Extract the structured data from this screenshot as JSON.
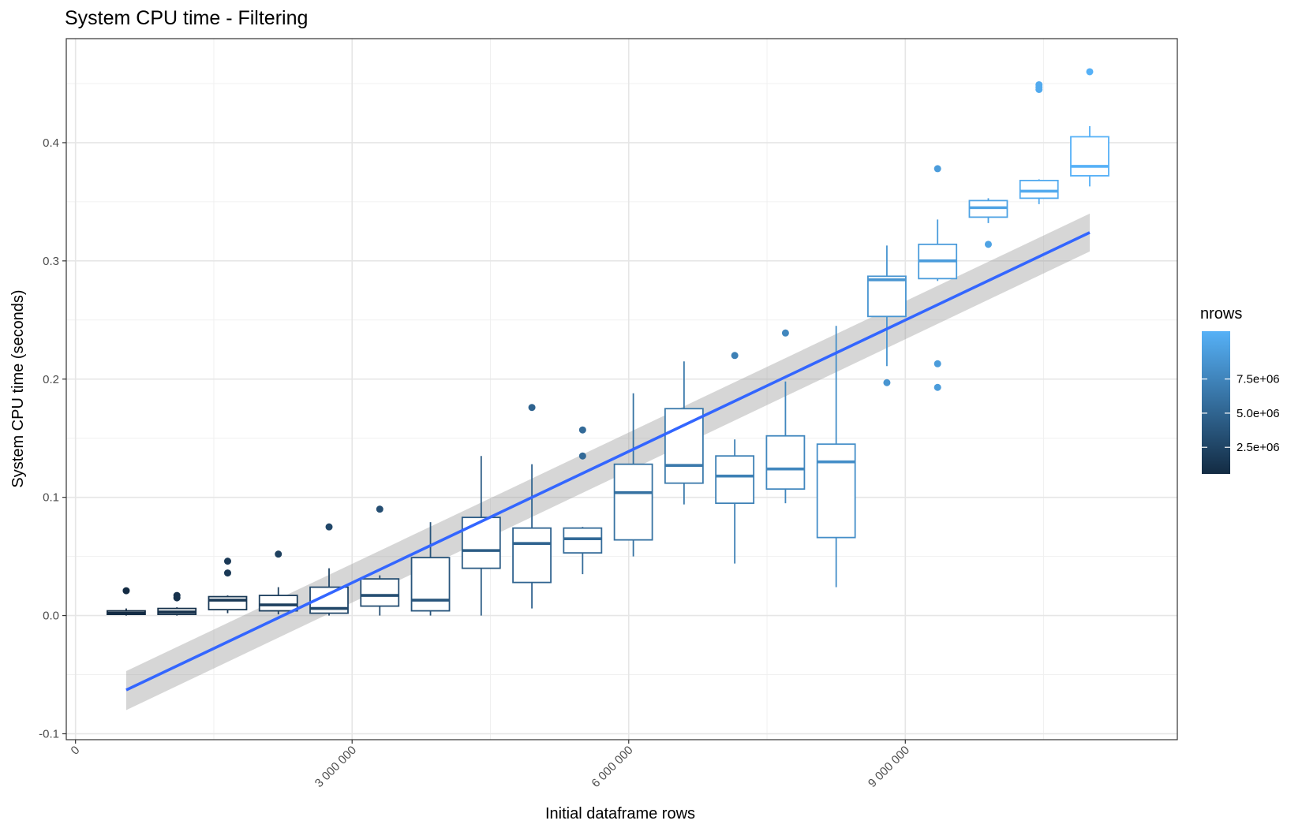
{
  "chart_data": {
    "type": "box",
    "title": "System CPU time - Filtering",
    "xlabel": "Initial dataframe rows",
    "ylabel": "System CPU time (seconds)",
    "xlim": [
      -100000,
      11950000
    ],
    "ylim": [
      -0.105,
      0.488
    ],
    "x_ticks": [
      {
        "value": 0,
        "label": "0"
      },
      {
        "value": 3000000,
        "label": "3 000 000"
      },
      {
        "value": 6000000,
        "label": "6 000 000"
      },
      {
        "value": 9000000,
        "label": "9 000 000"
      }
    ],
    "y_ticks": [
      {
        "value": -0.1,
        "label": "-0.1"
      },
      {
        "value": 0.0,
        "label": "0.0"
      },
      {
        "value": 0.1,
        "label": "0.1"
      },
      {
        "value": 0.2,
        "label": "0.2"
      },
      {
        "value": 0.3,
        "label": "0.3"
      },
      {
        "value": 0.4,
        "label": "0.4"
      }
    ],
    "grid": true,
    "legend": {
      "title": "nrows",
      "position": "right",
      "type": "colorbar",
      "color_low": "#132b43",
      "color_high": "#56b1f7",
      "range": [
        550000,
        11000000
      ],
      "ticks": [
        {
          "value": 2500000,
          "label": "2.5e+06"
        },
        {
          "value": 5000000,
          "label": "5.0e+06"
        },
        {
          "value": 7500000,
          "label": "7.5e+06"
        }
      ]
    },
    "boxes": [
      {
        "x": 550000,
        "whisker_low": 0.0,
        "q1": 0.001,
        "median": 0.002,
        "q3": 0.004,
        "whisker_high": 0.006,
        "outliers": [
          0.021
        ]
      },
      {
        "x": 1100000,
        "whisker_low": 0.0,
        "q1": 0.001,
        "median": 0.003,
        "q3": 0.006,
        "whisker_high": 0.007,
        "outliers": [
          0.015,
          0.017
        ]
      },
      {
        "x": 1650000,
        "whisker_low": 0.002,
        "q1": 0.005,
        "median": 0.013,
        "q3": 0.016,
        "whisker_high": 0.017,
        "outliers": [
          0.036,
          0.046
        ]
      },
      {
        "x": 2200000,
        "whisker_low": 0.001,
        "q1": 0.004,
        "median": 0.009,
        "q3": 0.017,
        "whisker_high": 0.024,
        "outliers": [
          0.052
        ]
      },
      {
        "x": 2750000,
        "whisker_low": 0.0,
        "q1": 0.002,
        "median": 0.006,
        "q3": 0.024,
        "whisker_high": 0.04,
        "outliers": [
          0.075
        ]
      },
      {
        "x": 3300000,
        "whisker_low": 0.0,
        "q1": 0.008,
        "median": 0.017,
        "q3": 0.031,
        "whisker_high": 0.034,
        "outliers": [
          0.09
        ]
      },
      {
        "x": 3850000,
        "whisker_low": 0.0,
        "q1": 0.004,
        "median": 0.013,
        "q3": 0.049,
        "whisker_high": 0.079,
        "outliers": []
      },
      {
        "x": 4400000,
        "whisker_low": 0.0,
        "q1": 0.04,
        "median": 0.055,
        "q3": 0.083,
        "whisker_high": 0.135,
        "outliers": []
      },
      {
        "x": 4950000,
        "whisker_low": 0.006,
        "q1": 0.028,
        "median": 0.061,
        "q3": 0.074,
        "whisker_high": 0.128,
        "outliers": [
          0.176
        ]
      },
      {
        "x": 5500000,
        "whisker_low": 0.035,
        "q1": 0.053,
        "median": 0.065,
        "q3": 0.074,
        "whisker_high": 0.075,
        "outliers": [
          0.135,
          0.157
        ]
      },
      {
        "x": 6050000,
        "whisker_low": 0.05,
        "q1": 0.064,
        "median": 0.104,
        "q3": 0.128,
        "whisker_high": 0.188,
        "outliers": []
      },
      {
        "x": 6600000,
        "whisker_low": 0.094,
        "q1": 0.112,
        "median": 0.127,
        "q3": 0.175,
        "whisker_high": 0.215,
        "outliers": []
      },
      {
        "x": 7150000,
        "whisker_low": 0.044,
        "q1": 0.095,
        "median": 0.118,
        "q3": 0.135,
        "whisker_high": 0.149,
        "outliers": [
          0.22
        ]
      },
      {
        "x": 7700000,
        "whisker_low": 0.095,
        "q1": 0.107,
        "median": 0.124,
        "q3": 0.152,
        "whisker_high": 0.198,
        "outliers": [
          0.239
        ]
      },
      {
        "x": 8250000,
        "whisker_low": 0.024,
        "q1": 0.066,
        "median": 0.13,
        "q3": 0.145,
        "whisker_high": 0.245,
        "outliers": []
      },
      {
        "x": 8800000,
        "whisker_low": 0.211,
        "q1": 0.253,
        "median": 0.284,
        "q3": 0.287,
        "whisker_high": 0.313,
        "outliers": [
          0.197
        ]
      },
      {
        "x": 9350000,
        "whisker_low": 0.283,
        "q1": 0.285,
        "median": 0.3,
        "q3": 0.314,
        "whisker_high": 0.335,
        "outliers": [
          0.193,
          0.213,
          0.378
        ]
      },
      {
        "x": 9900000,
        "whisker_low": 0.332,
        "q1": 0.337,
        "median": 0.345,
        "q3": 0.351,
        "whisker_high": 0.353,
        "outliers": [
          0.314
        ]
      },
      {
        "x": 10450000,
        "whisker_low": 0.348,
        "q1": 0.353,
        "median": 0.359,
        "q3": 0.368,
        "whisker_high": 0.369,
        "outliers": [
          0.445,
          0.447,
          0.449
        ]
      },
      {
        "x": 11000000,
        "whisker_low": 0.363,
        "q1": 0.372,
        "median": 0.38,
        "q3": 0.405,
        "whisker_high": 0.414,
        "outliers": [
          0.46
        ]
      }
    ],
    "trend": {
      "type": "linear",
      "color": "#3366ff",
      "x": [
        550000,
        11000000
      ],
      "y": [
        -0.063,
        0.324
      ],
      "ci_low": [
        -0.08,
        0.308
      ],
      "ci_high": [
        -0.047,
        0.34
      ],
      "ci_color": "#999999"
    }
  }
}
